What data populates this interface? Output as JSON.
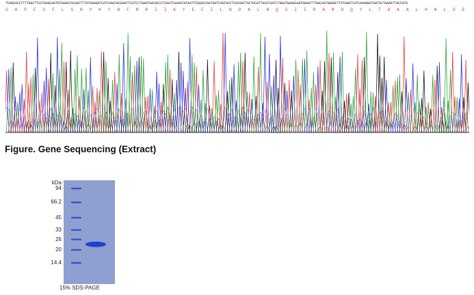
{
  "sequence": {
    "dna": "TCAGCACCTTTTAGCTTCCTGAGCAATGTGAAATACAACTTTATGAGGATCATCAAATACGAATTCATCCTGAATGACGCCCTCAATCAAAGTATAATTCGAGCCAATGATCAGTACCTCACGGCTGCTGCATTACATAATCTGGATGAAGCAGTGAAATTTGACAATGGGGCTTATAAGTCATCAAAGGATGATGCTAAAATTACCGTG",
    "amino_acids": "S A P F S F L S N V K Y N F M R I I K Y E F I L N D A L N Q S I I R A N D Q Y L T A A A L H N L D E A V K F D N G A Y K S S K D D A K I T V"
  },
  "chromatogram": {
    "trace_colors": {
      "A": "#2e9e3a",
      "C": "#2a2ae0",
      "G": "#111111",
      "T": "#e03a3a"
    }
  },
  "figure_caption": "Figure. Gene Sequencing (Extract)",
  "gel": {
    "unit_label": "kDa",
    "ladder": [
      {
        "label": "94",
        "kda": 94
      },
      {
        "label": "66.2",
        "kda": 66.2
      },
      {
        "label": "45",
        "kda": 45
      },
      {
        "label": "33",
        "kda": 33
      },
      {
        "label": "26",
        "kda": 26
      },
      {
        "label": "20",
        "kda": 20
      },
      {
        "label": "14.4",
        "kda": 14.4
      }
    ],
    "sample_band_kda": 23,
    "gel_color": "#8f9fcf",
    "band_color": "#1f3fd0",
    "method_label": "15% SDS-PAGE"
  }
}
